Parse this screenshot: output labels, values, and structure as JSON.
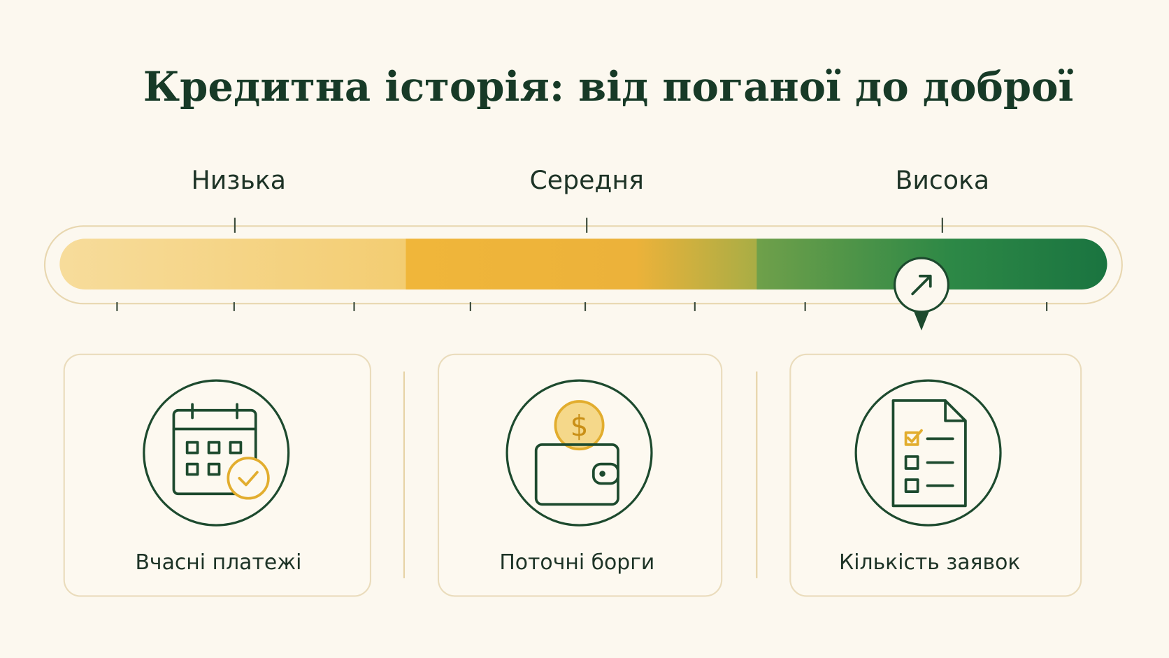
{
  "title": "Кредитна історія: від поганої до доброї",
  "scale": {
    "labels": [
      "Низька",
      "Середня",
      "Висока"
    ]
  },
  "cards": [
    {
      "label": "Вчасні платежі"
    },
    {
      "label": "Поточні борги"
    },
    {
      "label": "Кількість заявок"
    }
  ]
}
